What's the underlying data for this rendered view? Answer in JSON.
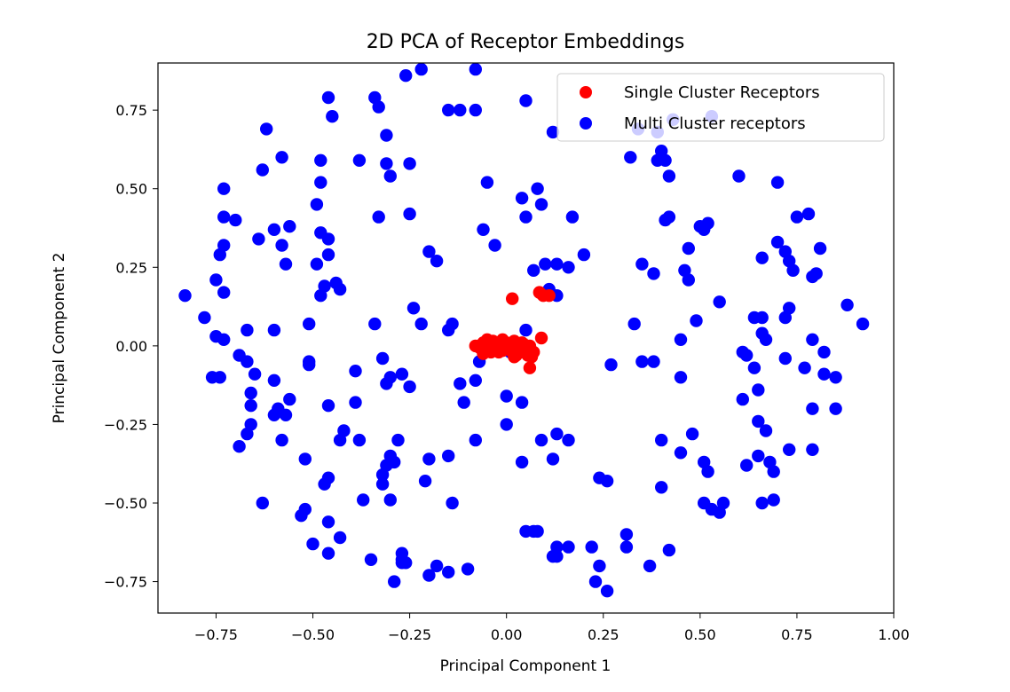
{
  "chart_data": {
    "type": "scatter",
    "title": "2D PCA of Receptor Embeddings",
    "xlabel": "Principal Component 1",
    "ylabel": "Principal Component 2",
    "xlim": [
      -0.9,
      1.0
    ],
    "ylim": [
      -0.85,
      0.9
    ],
    "xticks": [
      -0.75,
      -0.5,
      -0.25,
      0.0,
      0.25,
      0.5,
      0.75,
      1.0
    ],
    "xtick_labels": [
      "−0.75",
      "−0.50",
      "−0.25",
      "0.00",
      "0.25",
      "0.50",
      "0.75",
      "1.00"
    ],
    "yticks": [
      -0.75,
      -0.5,
      -0.25,
      0.0,
      0.25,
      0.5,
      0.75
    ],
    "ytick_labels": [
      "−0.75",
      "−0.50",
      "−0.25",
      "0.00",
      "0.25",
      "0.50",
      "0.75"
    ],
    "grid": false,
    "legend_position": "upper-right",
    "series": [
      {
        "name": "Multi Cluster receptors",
        "color": "#0000ff",
        "points": [
          [
            -0.83,
            0.16
          ],
          [
            -0.78,
            0.09
          ],
          [
            -0.76,
            -0.1
          ],
          [
            -0.74,
            -0.1
          ],
          [
            -0.75,
            0.03
          ],
          [
            -0.73,
            0.02
          ],
          [
            -0.75,
            0.21
          ],
          [
            -0.73,
            0.17
          ],
          [
            -0.74,
            0.29
          ],
          [
            -0.73,
            0.32
          ],
          [
            -0.73,
            0.41
          ],
          [
            -0.73,
            0.5
          ],
          [
            -0.7,
            0.4
          ],
          [
            -0.69,
            -0.32
          ],
          [
            -0.67,
            -0.28
          ],
          [
            -0.66,
            -0.25
          ],
          [
            -0.66,
            -0.19
          ],
          [
            -0.67,
            -0.05
          ],
          [
            -0.65,
            -0.09
          ],
          [
            -0.66,
            -0.15
          ],
          [
            -0.69,
            -0.03
          ],
          [
            -0.67,
            0.05
          ],
          [
            -0.64,
            0.34
          ],
          [
            -0.63,
            0.56
          ],
          [
            -0.62,
            0.69
          ],
          [
            -0.58,
            0.6
          ],
          [
            -0.6,
            0.37
          ],
          [
            -0.58,
            0.32
          ],
          [
            -0.56,
            0.38
          ],
          [
            -0.57,
            0.26
          ],
          [
            -0.6,
            0.05
          ],
          [
            -0.6,
            -0.11
          ],
          [
            -0.59,
            -0.2
          ],
          [
            -0.6,
            -0.22
          ],
          [
            -0.57,
            -0.22
          ],
          [
            -0.56,
            -0.17
          ],
          [
            -0.58,
            -0.3
          ],
          [
            -0.63,
            -0.5
          ],
          [
            -0.53,
            -0.54
          ],
          [
            -0.52,
            -0.52
          ],
          [
            -0.5,
            -0.63
          ],
          [
            -0.52,
            -0.36
          ],
          [
            -0.51,
            -0.05
          ],
          [
            -0.51,
            -0.06
          ],
          [
            -0.51,
            0.07
          ],
          [
            -0.49,
            0.26
          ],
          [
            -0.48,
            0.36
          ],
          [
            -0.48,
            0.16
          ],
          [
            -0.47,
            0.19
          ],
          [
            -0.46,
            0.29
          ],
          [
            -0.46,
            0.34
          ],
          [
            -0.48,
            0.52
          ],
          [
            -0.48,
            0.59
          ],
          [
            -0.49,
            0.45
          ],
          [
            -0.46,
            0.79
          ],
          [
            -0.45,
            0.73
          ],
          [
            -0.47,
            -0.44
          ],
          [
            -0.46,
            -0.19
          ],
          [
            -0.46,
            -0.42
          ],
          [
            -0.46,
            -0.56
          ],
          [
            -0.46,
            -0.66
          ],
          [
            -0.43,
            -0.61
          ],
          [
            -0.43,
            -0.3
          ],
          [
            -0.42,
            -0.27
          ],
          [
            -0.44,
            0.2
          ],
          [
            -0.43,
            0.18
          ],
          [
            -0.38,
            0.59
          ],
          [
            -0.34,
            0.79
          ],
          [
            -0.33,
            0.76
          ],
          [
            -0.31,
            0.67
          ],
          [
            -0.31,
            0.58
          ],
          [
            -0.3,
            0.54
          ],
          [
            -0.33,
            0.41
          ],
          [
            -0.39,
            -0.08
          ],
          [
            -0.39,
            -0.18
          ],
          [
            -0.38,
            -0.3
          ],
          [
            -0.37,
            -0.49
          ],
          [
            -0.35,
            -0.68
          ],
          [
            -0.34,
            0.07
          ],
          [
            -0.32,
            -0.04
          ],
          [
            -0.31,
            -0.12
          ],
          [
            -0.3,
            -0.1
          ],
          [
            -0.29,
            -0.37
          ],
          [
            -0.31,
            -0.38
          ],
          [
            -0.32,
            -0.41
          ],
          [
            -0.32,
            -0.44
          ],
          [
            -0.28,
            -0.3
          ],
          [
            -0.3,
            -0.35
          ],
          [
            -0.3,
            -0.49
          ],
          [
            -0.27,
            -0.66
          ],
          [
            -0.27,
            -0.68
          ],
          [
            -0.27,
            -0.69
          ],
          [
            -0.29,
            -0.75
          ],
          [
            -0.26,
            -0.69
          ],
          [
            -0.26,
            0.86
          ],
          [
            -0.22,
            0.88
          ],
          [
            -0.25,
            0.58
          ],
          [
            -0.25,
            0.42
          ],
          [
            -0.24,
            0.12
          ],
          [
            -0.22,
            0.07
          ],
          [
            -0.2,
            0.3
          ],
          [
            -0.27,
            -0.09
          ],
          [
            -0.25,
            -0.13
          ],
          [
            -0.21,
            -0.43
          ],
          [
            -0.2,
            -0.36
          ],
          [
            -0.2,
            -0.73
          ],
          [
            -0.18,
            -0.7
          ],
          [
            -0.15,
            -0.72
          ],
          [
            -0.15,
            0.05
          ],
          [
            -0.14,
            0.07
          ],
          [
            -0.18,
            0.27
          ],
          [
            -0.15,
            0.75
          ],
          [
            -0.12,
            0.75
          ],
          [
            -0.15,
            -0.35
          ],
          [
            -0.14,
            -0.5
          ],
          [
            -0.12,
            -0.12
          ],
          [
            -0.11,
            -0.18
          ],
          [
            -0.1,
            -0.71
          ],
          [
            -0.08,
            -0.3
          ],
          [
            -0.08,
            0.88
          ],
          [
            -0.08,
            0.75
          ],
          [
            -0.05,
            0.52
          ],
          [
            -0.06,
            0.37
          ],
          [
            -0.03,
            0.32
          ],
          [
            -0.07,
            -0.05
          ],
          [
            -0.08,
            -0.11
          ],
          [
            0.0,
            -0.25
          ],
          [
            0.0,
            -0.16
          ],
          [
            0.01,
            -0.02
          ],
          [
            0.05,
            0.05
          ],
          [
            0.04,
            -0.18
          ],
          [
            0.04,
            -0.37
          ],
          [
            0.05,
            -0.59
          ],
          [
            0.07,
            -0.59
          ],
          [
            0.08,
            -0.59
          ],
          [
            0.04,
            0.47
          ],
          [
            0.05,
            0.41
          ],
          [
            0.05,
            0.78
          ],
          [
            0.07,
            0.24
          ],
          [
            0.08,
            0.5
          ],
          [
            0.09,
            0.45
          ],
          [
            0.1,
            0.26
          ],
          [
            0.13,
            0.26
          ],
          [
            0.11,
            0.18
          ],
          [
            0.12,
            0.68
          ],
          [
            0.09,
            -0.3
          ],
          [
            0.12,
            -0.36
          ],
          [
            0.13,
            -0.28
          ],
          [
            0.16,
            -0.3
          ],
          [
            0.13,
            -0.64
          ],
          [
            0.13,
            -0.67
          ],
          [
            0.12,
            -0.67
          ],
          [
            0.16,
            -0.64
          ],
          [
            0.17,
            0.41
          ],
          [
            0.16,
            0.25
          ],
          [
            0.2,
            0.29
          ],
          [
            0.22,
            -0.64
          ],
          [
            0.23,
            -0.75
          ],
          [
            0.24,
            -0.7
          ],
          [
            0.26,
            -0.78
          ],
          [
            0.24,
            -0.42
          ],
          [
            0.26,
            -0.43
          ],
          [
            0.27,
            -0.06
          ],
          [
            0.31,
            -0.6
          ],
          [
            0.31,
            -0.64
          ],
          [
            0.33,
            0.07
          ],
          [
            0.32,
            0.6
          ],
          [
            0.34,
            0.69
          ],
          [
            0.35,
            0.26
          ],
          [
            0.35,
            -0.05
          ],
          [
            0.37,
            -0.7
          ],
          [
            0.38,
            -0.05
          ],
          [
            0.38,
            0.23
          ],
          [
            0.39,
            0.59
          ],
          [
            0.39,
            0.68
          ],
          [
            0.4,
            0.62
          ],
          [
            0.41,
            0.59
          ],
          [
            0.42,
            0.54
          ],
          [
            0.41,
            0.4
          ],
          [
            0.42,
            0.41
          ],
          [
            0.43,
            0.72
          ],
          [
            0.4,
            -0.3
          ],
          [
            0.4,
            -0.45
          ],
          [
            0.42,
            -0.65
          ],
          [
            0.45,
            -0.1
          ],
          [
            0.45,
            0.02
          ],
          [
            0.45,
            -0.34
          ],
          [
            0.46,
            0.24
          ],
          [
            0.47,
            0.21
          ],
          [
            0.47,
            0.31
          ],
          [
            0.48,
            -0.28
          ],
          [
            0.49,
            0.08
          ],
          [
            0.5,
            0.38
          ],
          [
            0.51,
            0.37
          ],
          [
            0.52,
            0.39
          ],
          [
            0.53,
            0.73
          ],
          [
            0.51,
            -0.37
          ],
          [
            0.52,
            -0.4
          ],
          [
            0.51,
            -0.5
          ],
          [
            0.53,
            -0.52
          ],
          [
            0.55,
            -0.53
          ],
          [
            0.56,
            -0.5
          ],
          [
            0.55,
            0.14
          ],
          [
            0.6,
            0.54
          ],
          [
            0.61,
            -0.02
          ],
          [
            0.62,
            -0.03
          ],
          [
            0.61,
            -0.17
          ],
          [
            0.62,
            -0.38
          ],
          [
            0.64,
            -0.07
          ],
          [
            0.64,
            0.09
          ],
          [
            0.65,
            -0.14
          ],
          [
            0.65,
            -0.24
          ],
          [
            0.65,
            -0.35
          ],
          [
            0.66,
            0.04
          ],
          [
            0.66,
            0.09
          ],
          [
            0.66,
            0.28
          ],
          [
            0.66,
            -0.5
          ],
          [
            0.67,
            -0.27
          ],
          [
            0.67,
            0.02
          ],
          [
            0.68,
            -0.37
          ],
          [
            0.69,
            -0.4
          ],
          [
            0.69,
            -0.49
          ],
          [
            0.7,
            0.52
          ],
          [
            0.7,
            0.33
          ],
          [
            0.72,
            0.3
          ],
          [
            0.73,
            0.27
          ],
          [
            0.74,
            0.24
          ],
          [
            0.72,
            0.09
          ],
          [
            0.72,
            -0.04
          ],
          [
            0.73,
            0.12
          ],
          [
            0.73,
            -0.33
          ],
          [
            0.75,
            0.41
          ],
          [
            0.78,
            0.42
          ],
          [
            0.77,
            -0.07
          ],
          [
            0.79,
            0.22
          ],
          [
            0.8,
            0.23
          ],
          [
            0.79,
            -0.2
          ],
          [
            0.79,
            -0.33
          ],
          [
            0.79,
            0.02
          ],
          [
            0.81,
            0.31
          ],
          [
            0.82,
            -0.02
          ],
          [
            0.82,
            -0.09
          ],
          [
            0.85,
            -0.1
          ],
          [
            0.85,
            -0.2
          ],
          [
            0.88,
            0.13
          ],
          [
            0.92,
            0.07
          ],
          [
            0.13,
            0.16
          ]
        ]
      },
      {
        "name": "Single Cluster Receptors",
        "color": "#ff0000",
        "points": [
          [
            0.015,
            0.15
          ],
          [
            0.085,
            0.17
          ],
          [
            0.095,
            0.16
          ],
          [
            0.11,
            0.16
          ],
          [
            0.09,
            0.025
          ],
          [
            -0.08,
            0.0
          ],
          [
            -0.07,
            -0.005
          ],
          [
            -0.06,
            0.01
          ],
          [
            -0.055,
            -0.01
          ],
          [
            -0.05,
            0.02
          ],
          [
            -0.045,
            0.0
          ],
          [
            -0.04,
            -0.02
          ],
          [
            -0.035,
            0.015
          ],
          [
            -0.03,
            -0.005
          ],
          [
            -0.025,
            0.01
          ],
          [
            -0.02,
            -0.02
          ],
          [
            -0.015,
            0.005
          ],
          [
            -0.01,
            -0.015
          ],
          [
            -0.005,
            0.0
          ],
          [
            0.0,
            0.01
          ],
          [
            0.005,
            -0.01
          ],
          [
            0.01,
            0.0
          ],
          [
            0.015,
            -0.02
          ],
          [
            0.02,
            0.015
          ],
          [
            0.025,
            -0.03
          ],
          [
            0.03,
            0.0
          ],
          [
            0.035,
            -0.01
          ],
          [
            0.04,
            0.01
          ],
          [
            0.045,
            -0.02
          ],
          [
            0.05,
            -0.005
          ],
          [
            0.055,
            -0.03
          ],
          [
            0.06,
            0.0
          ],
          [
            0.065,
            -0.035
          ],
          [
            0.07,
            -0.02
          ],
          [
            0.06,
            -0.07
          ],
          [
            0.045,
            0.005
          ],
          [
            -0.01,
            0.02
          ],
          [
            0.02,
            -0.035
          ],
          [
            -0.06,
            -0.025
          ]
        ]
      }
    ]
  }
}
